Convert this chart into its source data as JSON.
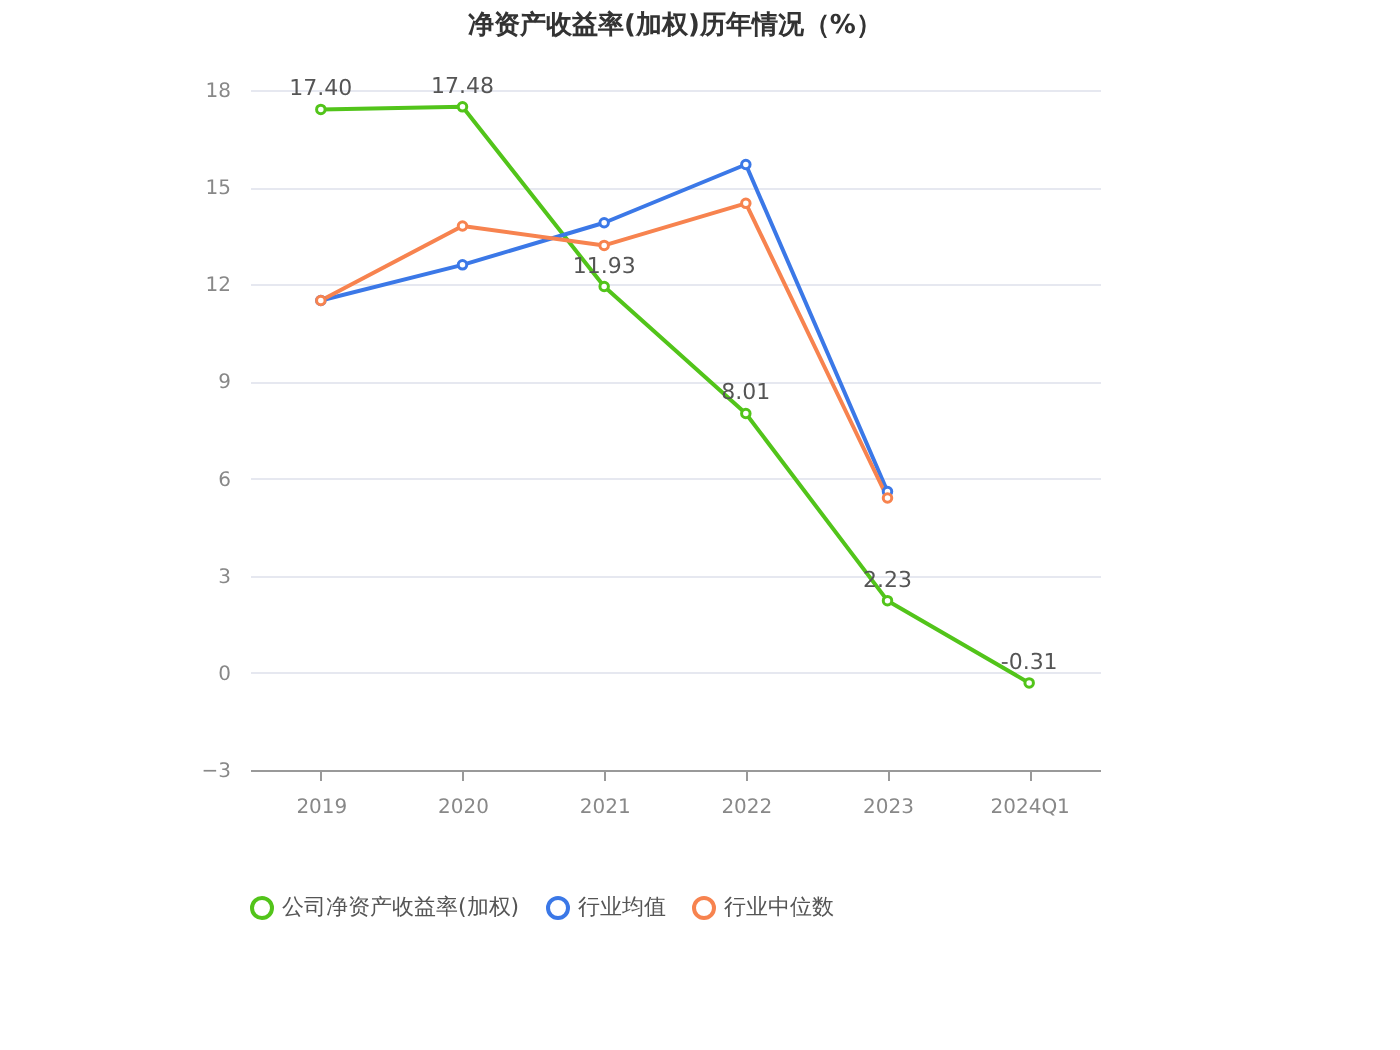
{
  "chart_data": {
    "type": "line",
    "title": "净资产收益率(加权)历年情况（%）",
    "categories": [
      "2019",
      "2020",
      "2021",
      "2022",
      "2023",
      "2024Q1"
    ],
    "series": [
      {
        "name": "公司净资产收益率(加权)",
        "color": "#52c41a",
        "values": [
          17.4,
          17.48,
          11.93,
          8.01,
          2.23,
          -0.31
        ],
        "value_labels": [
          "17.40",
          "17.48",
          "11.93",
          "8.01",
          "2.23",
          "-0.31"
        ]
      },
      {
        "name": "行业均值",
        "color": "#3b78e7",
        "values": [
          11.5,
          12.6,
          13.9,
          15.7,
          5.6,
          null
        ]
      },
      {
        "name": "行业中位数",
        "color": "#f7834f",
        "values": [
          11.5,
          13.8,
          13.2,
          14.5,
          5.4,
          null
        ]
      }
    ],
    "ylim": [
      -3,
      18
    ],
    "yticks": [
      -3,
      0,
      3,
      6,
      9,
      12,
      15,
      18
    ],
    "grid": "y",
    "legend": "bottom",
    "marker": "circle",
    "line_style": "solid"
  }
}
